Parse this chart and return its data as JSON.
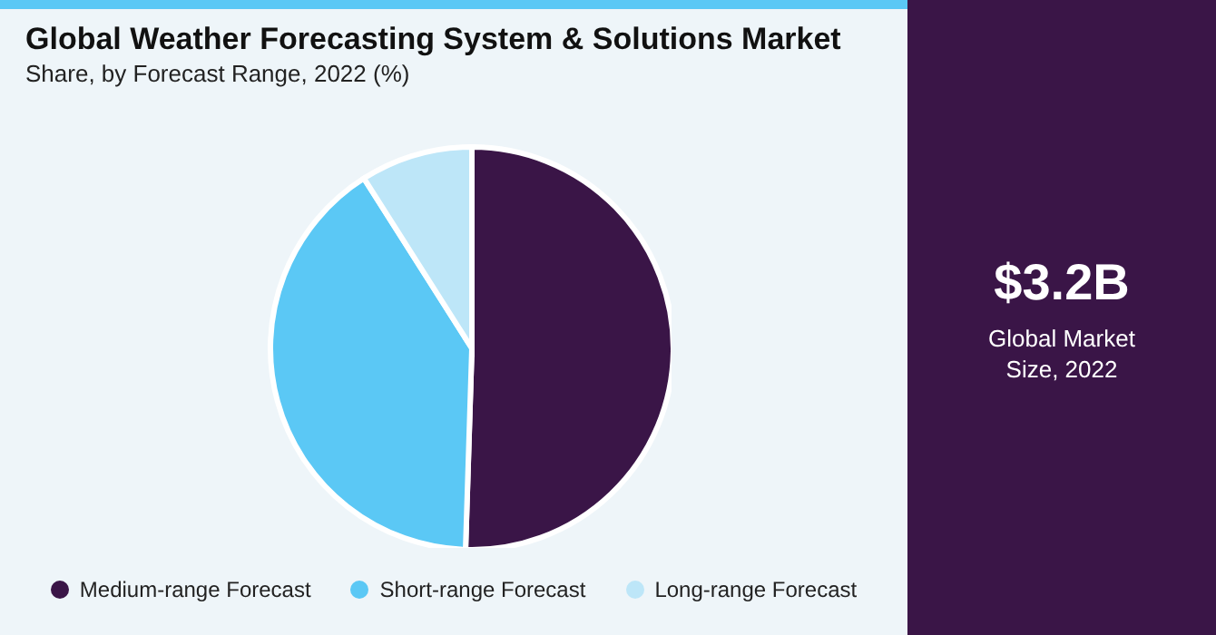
{
  "chart_data": {
    "type": "pie",
    "title": "Global Weather Forecasting System & Solutions Market",
    "subtitle": "Share, by Forecast Range, 2022 (%)",
    "categories": [
      "Medium-range Forecast",
      "Short-range Forecast",
      "Long-range Forecast"
    ],
    "values": [
      50.5,
      40.5,
      9
    ],
    "colors": [
      "#3a1547",
      "#5bc8f5",
      "#bde6f8"
    ],
    "legend": "bottom",
    "annotations": [
      "$3.2B",
      "Global Market Size, 2022"
    ]
  }
}
